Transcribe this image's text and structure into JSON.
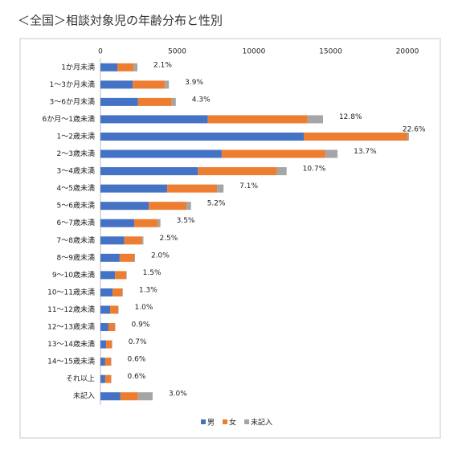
{
  "chart_data": {
    "type": "stacked-barh",
    "title": "＜全国＞相談対象児の年齢分布と性別",
    "categories": [
      "1か月未満",
      "1～3か月未満",
      "3～6か月未満",
      "6か月～1歳未満",
      "1～2歳未満",
      "2～3歳未満",
      "3～4歳未満",
      "4～5歳未満",
      "5～6歳未満",
      "6～7歳未満",
      "7～8歳未満",
      "8～9歳未満",
      "9～10歳未満",
      "10～11歳未満",
      "11～12歳未満",
      "12～13歳未満",
      "13～14歳未満",
      "14～15歳未満",
      "それ以上",
      "未記入"
    ],
    "series": [
      {
        "name": "男",
        "color": "#4472c4",
        "values": [
          1100,
          2100,
          2450,
          7000,
          13250,
          7900,
          6350,
          4350,
          3150,
          2200,
          1550,
          1250,
          950,
          800,
          630,
          520,
          370,
          310,
          310,
          1300
        ]
      },
      {
        "name": "女",
        "color": "#ed7d31",
        "values": [
          1050,
          2100,
          2200,
          6500,
          6750,
          6750,
          5150,
          3250,
          2450,
          1550,
          1150,
          950,
          730,
          630,
          520,
          420,
          370,
          370,
          370,
          1150
        ]
      },
      {
        "name": "未記入",
        "color": "#a5a5a5",
        "values": [
          260,
          260,
          260,
          1000,
          100,
          800,
          630,
          420,
          300,
          160,
          100,
          50,
          30,
          30,
          30,
          30,
          30,
          30,
          30,
          950
        ]
      }
    ],
    "share_labels": [
      "2.1%",
      "3.9%",
      "4.3%",
      "12.8%",
      "22.6%",
      "13.7%",
      "10.7%",
      "7.1%",
      "5.2%",
      "3.5%",
      "2.5%",
      "2.0%",
      "1.5%",
      "1.3%",
      "1.0%",
      "0.9%",
      "0.7%",
      "0.6%",
      "0.6%",
      "3.0%"
    ],
    "xlim": [
      0,
      20000
    ],
    "xticks": [
      0,
      5000,
      10000,
      15000,
      20000
    ],
    "grid": false,
    "legend": "bottom"
  }
}
